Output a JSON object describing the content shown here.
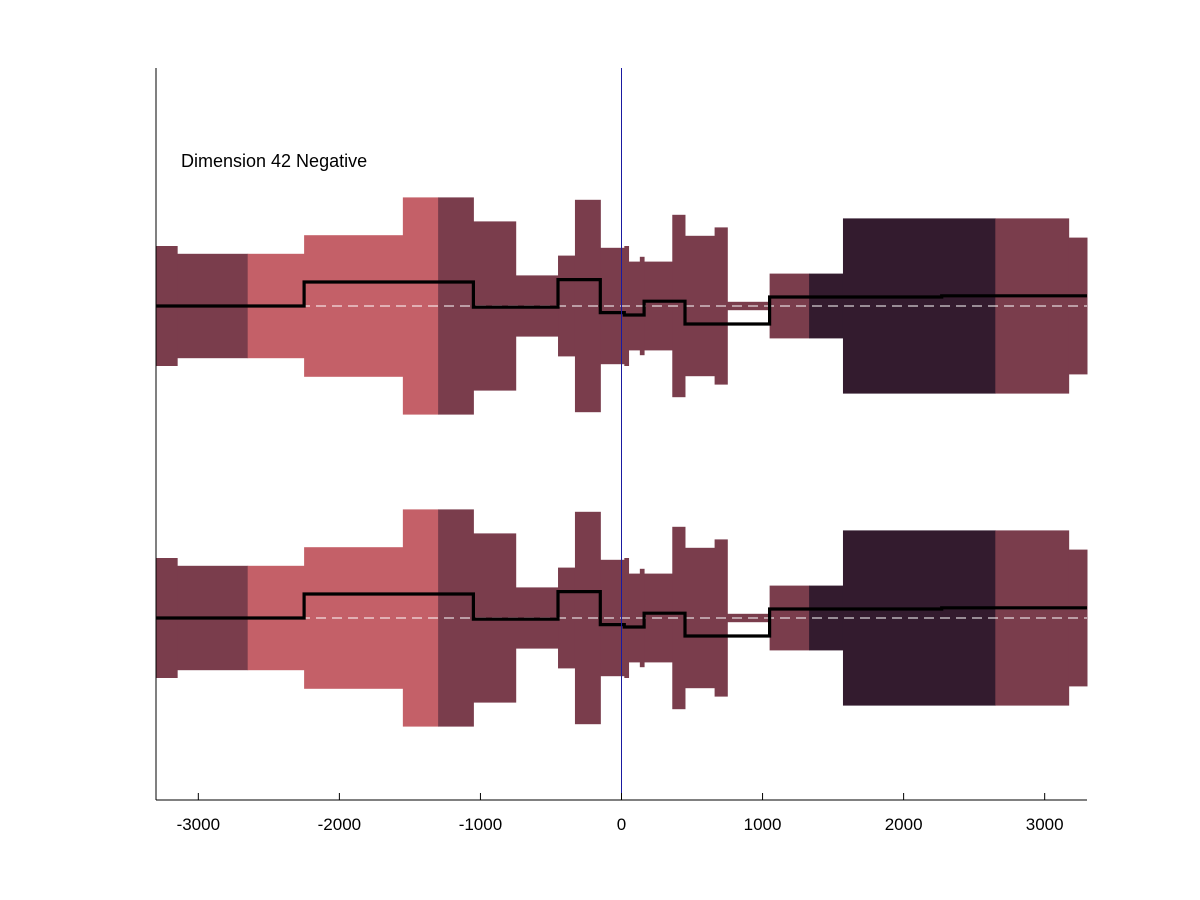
{
  "chart_data": {
    "type": "area",
    "title": "Dimension 42 Negative",
    "xlabel": "",
    "ylabel": "",
    "xlim": [
      -3300,
      3300
    ],
    "x_ticks": [
      -3000,
      -2000,
      -1000,
      0,
      1000,
      2000,
      3000
    ],
    "x_tick_labels": [
      "-3000",
      "-2000",
      "-1000",
      "0",
      "1000",
      "2000",
      "3000"
    ],
    "grid": false,
    "vertical_marker_x": 0,
    "colors": {
      "dark": "#7a3d4c",
      "light": "#c46068",
      "darkest": "#331b2e",
      "line": "#000000",
      "baseline": "#ffffff",
      "marker": "#1a1aa0"
    },
    "panels": [
      {
        "baseline": 0,
        "segments": [
          {
            "x0": -3300,
            "x1": -3150,
            "half": 1.0,
            "color": "dark"
          },
          {
            "x0": -3150,
            "x1": -2650,
            "half": 0.87,
            "color": "dark"
          },
          {
            "x0": -2650,
            "x1": -2250,
            "half": 0.87,
            "color": "light"
          },
          {
            "x0": -2250,
            "x1": -1550,
            "half": 1.18,
            "color": "light"
          },
          {
            "x0": -1550,
            "x1": -1300,
            "half": 1.81,
            "color": "light"
          },
          {
            "x0": -1300,
            "x1": -1050,
            "half": 1.81,
            "color": "dark"
          },
          {
            "x0": -1050,
            "x1": -750,
            "half": 1.41,
            "color": "dark"
          },
          {
            "x0": -750,
            "x1": -450,
            "half": 0.51,
            "color": "dark"
          },
          {
            "x0": -450,
            "x1": -330,
            "half": 0.84,
            "color": "dark"
          },
          {
            "x0": -330,
            "x1": -150,
            "half": 1.77,
            "color": "dark"
          },
          {
            "x0": -150,
            "x1": 20,
            "half": 0.97,
            "color": "dark"
          },
          {
            "x0": 20,
            "x1": 50,
            "half": 1.0,
            "color": "dark"
          },
          {
            "x0": 50,
            "x1": 130,
            "half": 0.74,
            "color": "dark"
          },
          {
            "x0": 130,
            "x1": 160,
            "half": 0.82,
            "color": "dark"
          },
          {
            "x0": 160,
            "x1": 360,
            "half": 0.74,
            "color": "dark"
          },
          {
            "x0": 360,
            "x1": 450,
            "half": 1.52,
            "color": "dark"
          },
          {
            "x0": 450,
            "x1": 660,
            "half": 1.17,
            "color": "dark"
          },
          {
            "x0": 660,
            "x1": 750,
            "half": 1.31,
            "color": "dark"
          },
          {
            "x0": 750,
            "x1": 1050,
            "half": 0.07,
            "color": "dark"
          },
          {
            "x0": 1050,
            "x1": 1330,
            "half": 0.54,
            "color": "dark"
          },
          {
            "x0": 1330,
            "x1": 1570,
            "half": 0.54,
            "color": "darkest"
          },
          {
            "x0": 1570,
            "x1": 2650,
            "half": 1.46,
            "color": "darkest"
          },
          {
            "x0": 2650,
            "x1": 3170,
            "half": 1.46,
            "color": "dark"
          },
          {
            "x0": 3170,
            "x1": 3300,
            "half": 1.14,
            "color": "dark"
          }
        ],
        "line": [
          {
            "x0": -3300,
            "x1": -2250,
            "y": 0.0
          },
          {
            "x0": -2250,
            "x1": -1050,
            "y": 0.4
          },
          {
            "x0": -1050,
            "x1": -450,
            "y": -0.02
          },
          {
            "x0": -450,
            "x1": -150,
            "y": 0.44
          },
          {
            "x0": -150,
            "x1": 20,
            "y": -0.11
          },
          {
            "x0": 20,
            "x1": 160,
            "y": -0.15
          },
          {
            "x0": 160,
            "x1": 450,
            "y": 0.08
          },
          {
            "x0": 450,
            "x1": 1050,
            "y": -0.3
          },
          {
            "x0": 1050,
            "x1": 2270,
            "y": 0.15
          },
          {
            "x0": 2270,
            "x1": 3300,
            "y": 0.17
          }
        ]
      },
      {
        "baseline": 0,
        "segments": [
          {
            "x0": -3300,
            "x1": -3150,
            "half": 1.0,
            "color": "dark"
          },
          {
            "x0": -3150,
            "x1": -2650,
            "half": 0.87,
            "color": "dark"
          },
          {
            "x0": -2650,
            "x1": -2250,
            "half": 0.87,
            "color": "light"
          },
          {
            "x0": -2250,
            "x1": -1550,
            "half": 1.18,
            "color": "light"
          },
          {
            "x0": -1550,
            "x1": -1300,
            "half": 1.81,
            "color": "light"
          },
          {
            "x0": -1300,
            "x1": -1050,
            "half": 1.81,
            "color": "dark"
          },
          {
            "x0": -1050,
            "x1": -750,
            "half": 1.41,
            "color": "dark"
          },
          {
            "x0": -750,
            "x1": -450,
            "half": 0.51,
            "color": "dark"
          },
          {
            "x0": -450,
            "x1": -330,
            "half": 0.84,
            "color": "dark"
          },
          {
            "x0": -330,
            "x1": -150,
            "half": 1.77,
            "color": "dark"
          },
          {
            "x0": -150,
            "x1": 20,
            "half": 0.97,
            "color": "dark"
          },
          {
            "x0": 20,
            "x1": 50,
            "half": 1.0,
            "color": "dark"
          },
          {
            "x0": 50,
            "x1": 130,
            "half": 0.74,
            "color": "dark"
          },
          {
            "x0": 130,
            "x1": 160,
            "half": 0.82,
            "color": "dark"
          },
          {
            "x0": 160,
            "x1": 360,
            "half": 0.74,
            "color": "dark"
          },
          {
            "x0": 360,
            "x1": 450,
            "half": 1.52,
            "color": "dark"
          },
          {
            "x0": 450,
            "x1": 660,
            "half": 1.17,
            "color": "dark"
          },
          {
            "x0": 660,
            "x1": 750,
            "half": 1.31,
            "color": "dark"
          },
          {
            "x0": 750,
            "x1": 1050,
            "half": 0.07,
            "color": "dark"
          },
          {
            "x0": 1050,
            "x1": 1330,
            "half": 0.54,
            "color": "dark"
          },
          {
            "x0": 1330,
            "x1": 1570,
            "half": 0.54,
            "color": "darkest"
          },
          {
            "x0": 1570,
            "x1": 2650,
            "half": 1.46,
            "color": "darkest"
          },
          {
            "x0": 2650,
            "x1": 3170,
            "half": 1.46,
            "color": "dark"
          },
          {
            "x0": 3170,
            "x1": 3300,
            "half": 1.14,
            "color": "dark"
          }
        ],
        "line": [
          {
            "x0": -3300,
            "x1": -2250,
            "y": 0.0
          },
          {
            "x0": -2250,
            "x1": -1050,
            "y": 0.4
          },
          {
            "x0": -1050,
            "x1": -450,
            "y": -0.02
          },
          {
            "x0": -450,
            "x1": -150,
            "y": 0.44
          },
          {
            "x0": -150,
            "x1": 20,
            "y": -0.11
          },
          {
            "x0": 20,
            "x1": 160,
            "y": -0.15
          },
          {
            "x0": 160,
            "x1": 450,
            "y": 0.08
          },
          {
            "x0": 450,
            "x1": 1050,
            "y": -0.3
          },
          {
            "x0": 1050,
            "x1": 2270,
            "y": 0.15
          },
          {
            "x0": 2270,
            "x1": 3300,
            "y": 0.17
          }
        ]
      }
    ]
  }
}
